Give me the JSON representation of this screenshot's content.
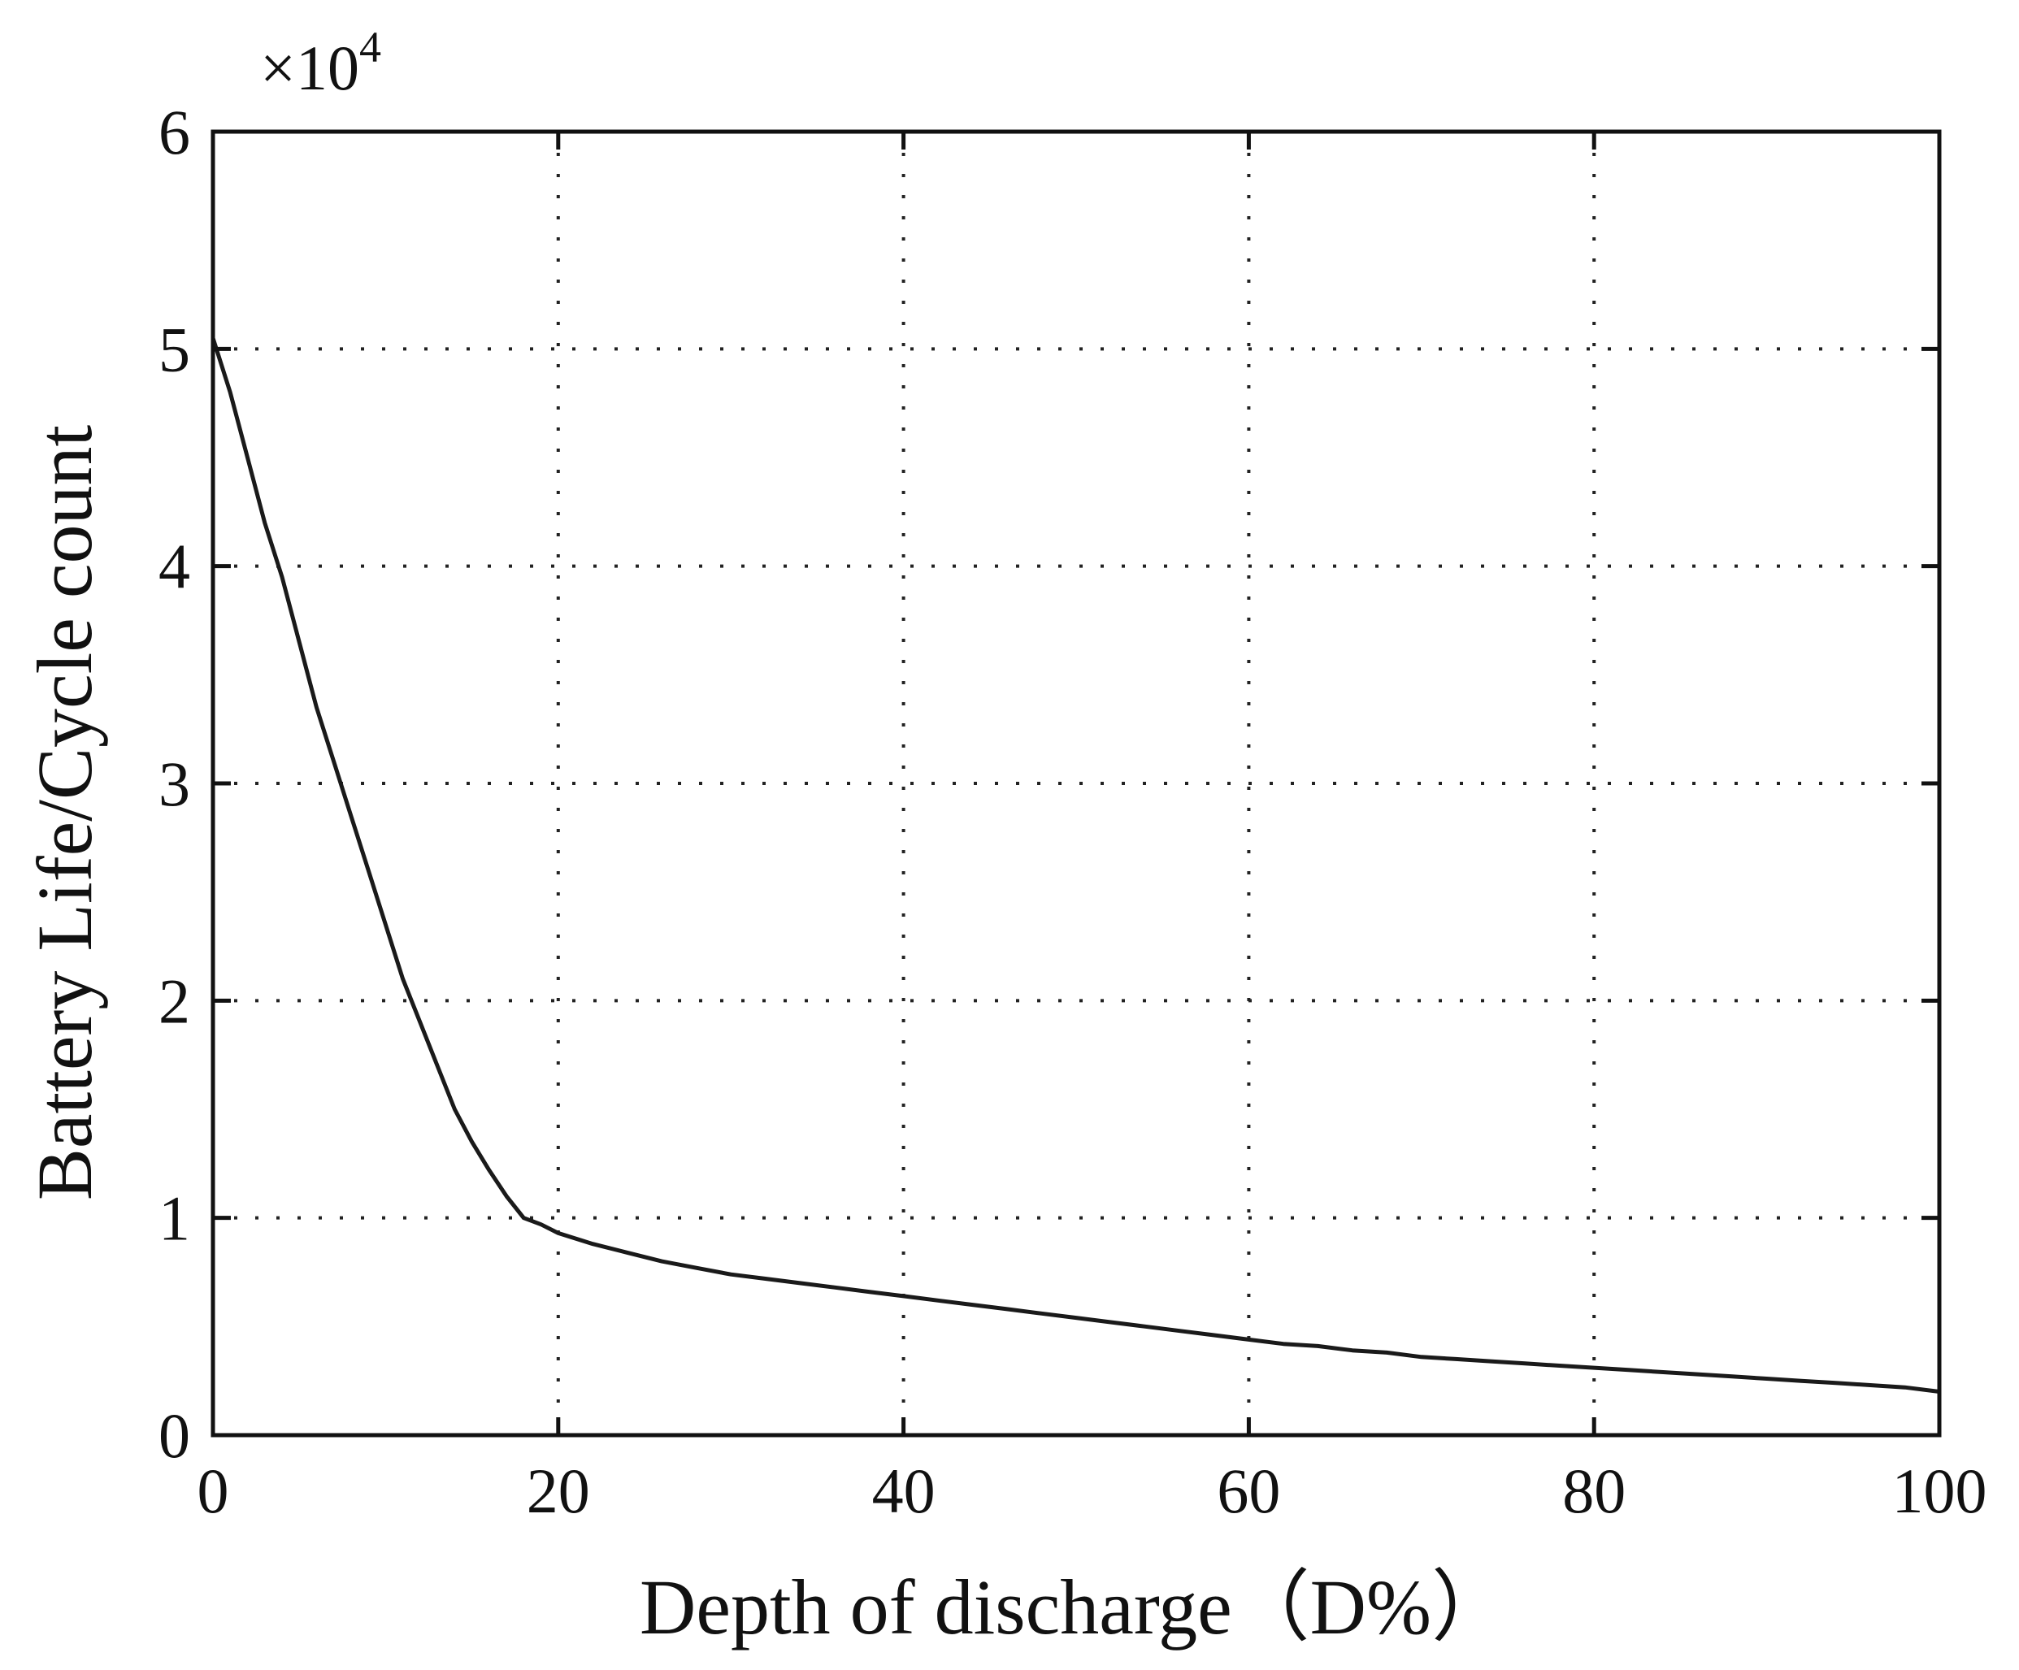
{
  "chart_data": {
    "type": "line",
    "title": "",
    "xlabel": "Depth of discharge（D%）",
    "ylabel": "Battery Life/Cycle count",
    "y_multiplier_label": "×10",
    "y_multiplier_exponent": "4",
    "xlim": [
      0,
      100
    ],
    "ylim": [
      0,
      6
    ],
    "xticks": [
      0,
      20,
      40,
      60,
      80,
      100
    ],
    "yticks": [
      0,
      1,
      2,
      3,
      4,
      5,
      6
    ],
    "xtick_labels": [
      "0",
      "20",
      "40",
      "60",
      "80",
      "100"
    ],
    "ytick_labels": [
      "0",
      "1",
      "2",
      "3",
      "4",
      "5",
      "6"
    ],
    "grid": true,
    "legend": "none",
    "line_color": "#1a1a1a",
    "series": [
      {
        "x": [
          0,
          1,
          2,
          3,
          4,
          5,
          6,
          7,
          8,
          9,
          10,
          11,
          12,
          13,
          14,
          15,
          16,
          17,
          18,
          19,
          20,
          22,
          24,
          26,
          28,
          30,
          32,
          34,
          36,
          38,
          40,
          42,
          44,
          46,
          48,
          50,
          52,
          54,
          56,
          58,
          60,
          62,
          64,
          66,
          68,
          70,
          72,
          74,
          76,
          78,
          80,
          82,
          84,
          86,
          88,
          90,
          92,
          94,
          96,
          98,
          100
        ],
        "y": [
          5.05,
          4.8,
          4.5,
          4.2,
          3.95,
          3.65,
          3.35,
          3.1,
          2.85,
          2.6,
          2.35,
          2.1,
          1.9,
          1.7,
          1.5,
          1.35,
          1.22,
          1.1,
          1.0,
          0.97,
          0.93,
          0.88,
          0.84,
          0.8,
          0.77,
          0.74,
          0.72,
          0.7,
          0.68,
          0.66,
          0.64,
          0.62,
          0.6,
          0.58,
          0.56,
          0.54,
          0.52,
          0.5,
          0.48,
          0.46,
          0.44,
          0.42,
          0.41,
          0.39,
          0.38,
          0.36,
          0.35,
          0.34,
          0.33,
          0.32,
          0.31,
          0.3,
          0.29,
          0.28,
          0.27,
          0.26,
          0.25,
          0.24,
          0.23,
          0.22,
          0.2
        ]
      }
    ]
  }
}
